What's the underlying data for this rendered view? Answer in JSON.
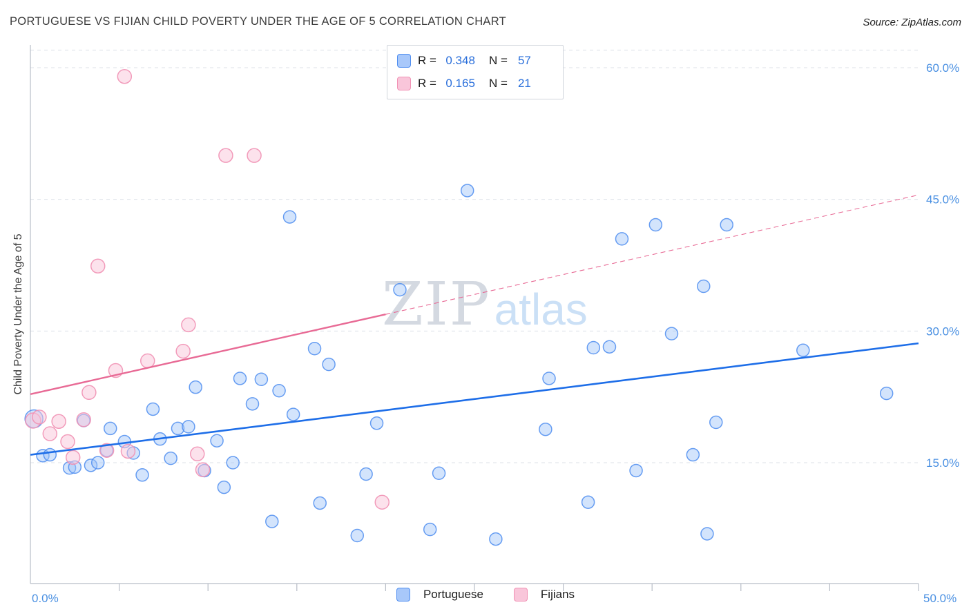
{
  "header": {
    "title": "PORTUGUESE VS FIJIAN CHILD POVERTY UNDER THE AGE OF 5 CORRELATION CHART",
    "source": "Source: ZipAtlas.com"
  },
  "watermark": {
    "zip": "ZIP",
    "atlas": "atlas"
  },
  "legend_box": {
    "rows": [
      {
        "r_label": "R =",
        "r_value": "0.348",
        "n_label": "N =",
        "n_value": "57"
      },
      {
        "r_label": "R =",
        "r_value": "0.165",
        "n_label": "N =",
        "n_value": "21"
      }
    ]
  },
  "bottom_legend": {
    "items": [
      {
        "label": "Portuguese"
      },
      {
        "label": "Fijians"
      }
    ]
  },
  "colors": {
    "portuguese_fill": "#9ec3f8",
    "portuguese_stroke": "#4e8df0",
    "fijian_fill": "#f9c6da",
    "fijian_stroke": "#f191b4",
    "trend_portuguese": "#1e6ee8",
    "trend_fijian": "#e86a95",
    "axis_label_blue": "#4a90e2"
  },
  "chart_data": {
    "type": "scatter",
    "title": "Portuguese vs Fijian Child Poverty Under the Age of 5 Correlation Chart",
    "xlabel": "",
    "ylabel": "Child Poverty Under the Age of 5",
    "xlim": [
      0,
      50
    ],
    "ylim": [
      1,
      62
    ],
    "grid": "horizontal-dashed",
    "legend_position": "top-center",
    "x_ticks": [
      {
        "value": 0,
        "label": "0.0%"
      },
      {
        "value": 50,
        "label": "50.0%"
      }
    ],
    "y_ticks": [
      {
        "value": 60,
        "label": "60.0%"
      },
      {
        "value": 45,
        "label": "45.0%"
      },
      {
        "value": 30,
        "label": "30.0%"
      },
      {
        "value": 15,
        "label": "15.0%"
      }
    ],
    "series": [
      {
        "key": "portuguese",
        "name": "Portuguese",
        "R": 0.348,
        "N": 57,
        "marker_radius": 9,
        "points": [
          [
            0.2,
            20.0,
            13
          ],
          [
            0.7,
            15.8
          ],
          [
            1.1,
            15.9
          ],
          [
            2.2,
            14.4
          ],
          [
            2.5,
            14.5
          ],
          [
            3.0,
            19.8
          ],
          [
            3.4,
            14.7
          ],
          [
            3.8,
            15.0
          ],
          [
            4.3,
            16.4
          ],
          [
            4.5,
            18.9
          ],
          [
            5.3,
            17.4
          ],
          [
            5.8,
            16.1
          ],
          [
            6.3,
            13.6
          ],
          [
            6.9,
            21.1
          ],
          [
            7.3,
            17.7
          ],
          [
            7.9,
            15.5
          ],
          [
            8.3,
            18.9
          ],
          [
            8.9,
            19.1
          ],
          [
            9.3,
            23.6
          ],
          [
            9.8,
            14.1
          ],
          [
            10.5,
            17.5
          ],
          [
            10.9,
            12.2
          ],
          [
            11.4,
            15.0
          ],
          [
            11.8,
            24.6
          ],
          [
            12.5,
            21.7
          ],
          [
            13.0,
            24.5
          ],
          [
            13.6,
            8.3
          ],
          [
            14.0,
            23.2
          ],
          [
            14.6,
            43.0
          ],
          [
            14.8,
            20.5
          ],
          [
            16.0,
            28.0
          ],
          [
            16.3,
            10.4
          ],
          [
            16.8,
            26.2
          ],
          [
            18.4,
            6.7
          ],
          [
            18.9,
            13.7
          ],
          [
            19.5,
            19.5
          ],
          [
            20.8,
            34.7
          ],
          [
            22.5,
            7.4
          ],
          [
            23.0,
            13.8
          ],
          [
            24.6,
            46.0
          ],
          [
            26.2,
            6.3
          ],
          [
            29.0,
            18.8
          ],
          [
            29.2,
            24.6
          ],
          [
            31.4,
            10.5
          ],
          [
            31.7,
            28.1
          ],
          [
            32.6,
            28.2
          ],
          [
            33.3,
            40.5
          ],
          [
            34.1,
            14.1
          ],
          [
            35.2,
            42.1
          ],
          [
            36.1,
            29.7
          ],
          [
            37.3,
            15.9
          ],
          [
            37.9,
            35.1
          ],
          [
            38.1,
            6.9
          ],
          [
            38.6,
            19.6
          ],
          [
            39.2,
            42.1
          ],
          [
            43.5,
            27.8
          ],
          [
            48.2,
            22.9
          ]
        ]
      },
      {
        "key": "fijians",
        "name": "Fijians",
        "R": 0.165,
        "N": 21,
        "marker_radius": 10,
        "points": [
          [
            0.15,
            19.8,
            11
          ],
          [
            0.5,
            20.2
          ],
          [
            1.1,
            18.3
          ],
          [
            1.6,
            19.7
          ],
          [
            2.1,
            17.4
          ],
          [
            2.4,
            15.6
          ],
          [
            3.0,
            19.9
          ],
          [
            3.3,
            23.0
          ],
          [
            3.8,
            37.4
          ],
          [
            4.3,
            16.4
          ],
          [
            4.8,
            25.5
          ],
          [
            5.3,
            59.0
          ],
          [
            5.5,
            16.3
          ],
          [
            6.6,
            26.6
          ],
          [
            8.6,
            27.7
          ],
          [
            8.9,
            30.7
          ],
          [
            9.4,
            16.0
          ],
          [
            9.7,
            14.2
          ],
          [
            11.0,
            50.0
          ],
          [
            12.6,
            50.0
          ],
          [
            19.8,
            10.5
          ]
        ]
      }
    ],
    "trend_lines": [
      {
        "series": "portuguese",
        "style": "solid",
        "x": [
          0,
          50
        ],
        "y": [
          15.9,
          28.6
        ]
      },
      {
        "series": "fijians",
        "style": "solid",
        "x": [
          0,
          20
        ],
        "y": [
          22.8,
          31.9
        ]
      },
      {
        "series": "fijians",
        "style": "dashed",
        "x": [
          20,
          50
        ],
        "y": [
          31.9,
          45.5
        ]
      }
    ]
  }
}
